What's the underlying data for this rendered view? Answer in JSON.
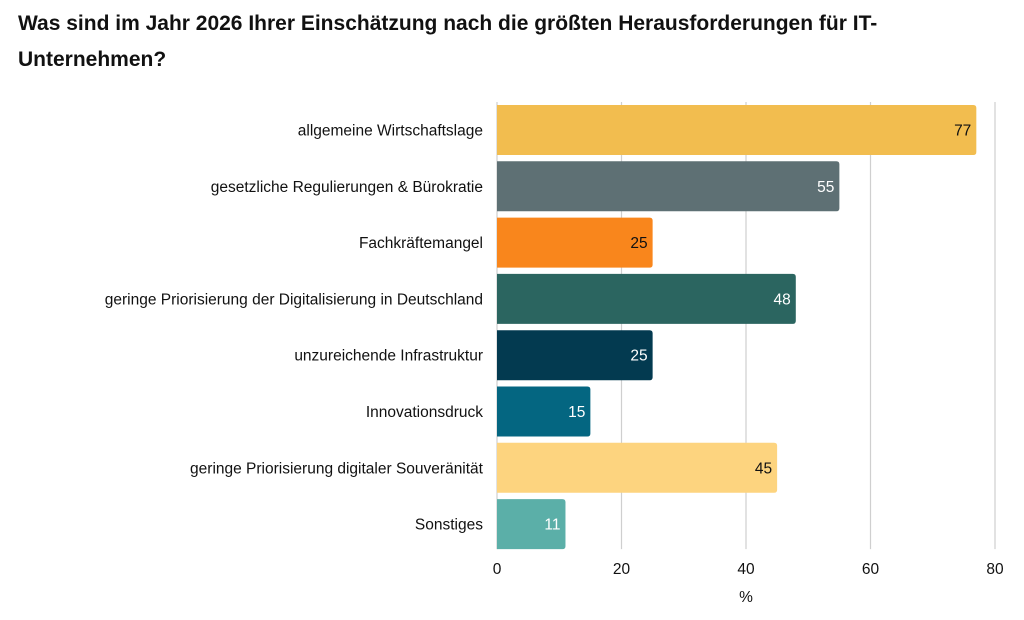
{
  "chart_data": {
    "type": "bar",
    "orientation": "horizontal",
    "title": "Was sind im Jahr 2026 Ihrer Einschätzung nach die größten Herausforderungen für IT-Unternehmen?",
    "xlabel": "%",
    "ylabel": "",
    "xlim": [
      0,
      80
    ],
    "xticks": [
      "0",
      "20",
      "40",
      "60",
      "80"
    ],
    "grid": true,
    "categories": [
      "allgemeine Wirtschaftslage",
      "gesetzliche Regulierungen & Bürokratie",
      "Fachkräftemangel",
      "geringe Priorisierung der Digitalisierung in Deutschland",
      "unzureichende Infrastruktur",
      "Innovationsdruck",
      "geringe Priorisierung digitaler Souveränität",
      "Sonstiges"
    ],
    "values": [
      77,
      55,
      25,
      48,
      25,
      15,
      45,
      11
    ],
    "colors": [
      "#F2BD4F",
      "#5E7074",
      "#F9861C",
      "#2B6560",
      "#033A50",
      "#046681",
      "#FDD47F",
      "#5BAFA8"
    ],
    "label_colors": [
      "#111111",
      "#FFFFFF",
      "#111111",
      "#FFFFFF",
      "#FFFFFF",
      "#FFFFFF",
      "#111111",
      "#FFFFFF"
    ]
  }
}
